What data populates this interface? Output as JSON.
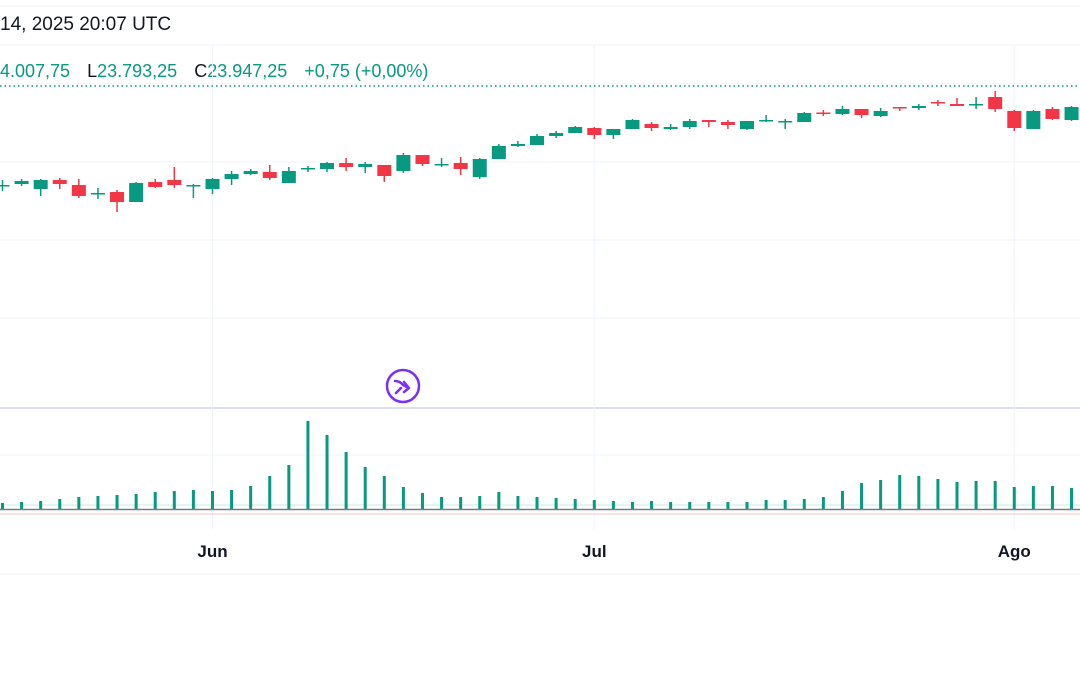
{
  "header": {
    "datetime": "14, 2025 20:07 UTC"
  },
  "legend": {
    "high_value": "4.007,75",
    "low_label": "L",
    "low_value": "23.793,25",
    "close_label": "C",
    "close_value": "23.947,25",
    "change": "+0,75 (+0,00%)"
  },
  "colors": {
    "up": "#089981",
    "down": "#F23645",
    "accent": "#7B2FF7",
    "text": "#131722"
  },
  "icons": {
    "go_to_realtime": "arrow-right-circle-icon"
  },
  "chart_data": {
    "type": "candlestick",
    "x_tick_labels": [
      "Jun",
      "Jul",
      "Ago"
    ],
    "x_tick_index": [
      11,
      31,
      53
    ],
    "current_price": 23947.25,
    "y_range": [
      19000,
      25000
    ],
    "grid": true,
    "ohlc": [
      [
        21397,
        21538,
        21256,
        21410
      ],
      [
        21436,
        21564,
        21385,
        21513
      ],
      [
        21308,
        21564,
        21128,
        21538
      ],
      [
        21538,
        21590,
        21308,
        21436
      ],
      [
        21410,
        21564,
        21077,
        21128
      ],
      [
        21179,
        21333,
        21051,
        21205
      ],
      [
        21231,
        21282,
        20718,
        20974
      ],
      [
        20974,
        21487,
        20974,
        21462
      ],
      [
        21487,
        21564,
        21333,
        21359
      ],
      [
        21538,
        21872,
        21333,
        21410
      ],
      [
        21385,
        21436,
        21077,
        21410
      ],
      [
        21308,
        21590,
        21179,
        21564
      ],
      [
        21564,
        21769,
        21410,
        21692
      ],
      [
        21692,
        21821,
        21667,
        21769
      ],
      [
        21744,
        21923,
        21538,
        21590
      ],
      [
        21462,
        21872,
        21462,
        21769
      ],
      [
        21833,
        21897,
        21744,
        21846
      ],
      [
        21821,
        22000,
        21744,
        21974
      ],
      [
        21974,
        22103,
        21769,
        21872
      ],
      [
        21872,
        22000,
        21718,
        21949
      ],
      [
        21923,
        21923,
        21487,
        21641
      ],
      [
        21769,
        22231,
        21718,
        22179
      ],
      [
        22179,
        22179,
        21897,
        21949
      ],
      [
        21936,
        22103,
        21872,
        21949
      ],
      [
        21974,
        22128,
        21667,
        21821
      ],
      [
        21615,
        22103,
        21564,
        22077
      ],
      [
        22077,
        22462,
        22077,
        22410
      ],
      [
        22410,
        22538,
        22385,
        22462
      ],
      [
        22436,
        22718,
        22436,
        22667
      ],
      [
        22667,
        22795,
        22615,
        22744
      ],
      [
        22744,
        22923,
        22744,
        22897
      ],
      [
        22872,
        22897,
        22590,
        22692
      ],
      [
        22692,
        22846,
        22590,
        22846
      ],
      [
        22846,
        23103,
        22846,
        23077
      ],
      [
        22974,
        23026,
        22795,
        22872
      ],
      [
        22846,
        22974,
        22821,
        22897
      ],
      [
        22897,
        23103,
        22846,
        23051
      ],
      [
        23077,
        23077,
        22897,
        23026
      ],
      [
        23026,
        23077,
        22846,
        22949
      ],
      [
        22846,
        23051,
        22821,
        23051
      ],
      [
        23064,
        23205,
        23026,
        23077
      ],
      [
        23038,
        23103,
        22846,
        23051
      ],
      [
        23026,
        23282,
        23026,
        23256
      ],
      [
        23269,
        23333,
        23179,
        23256
      ],
      [
        23231,
        23436,
        23205,
        23359
      ],
      [
        23359,
        23359,
        23128,
        23205
      ],
      [
        23179,
        23385,
        23154,
        23308
      ],
      [
        23410,
        23410,
        23308,
        23372
      ],
      [
        23385,
        23487,
        23333,
        23436
      ],
      [
        23538,
        23590,
        23436,
        23500
      ],
      [
        23487,
        23641,
        23436,
        23436
      ],
      [
        23474,
        23667,
        23359,
        23487
      ],
      [
        23667,
        23821,
        23282,
        23359
      ],
      [
        23308,
        23333,
        22795,
        22872
      ],
      [
        22846,
        23333,
        22846,
        23308
      ],
      [
        23359,
        23410,
        23077,
        23103
      ],
      [
        23077,
        23436,
        23051,
        23410
      ]
    ],
    "volume": [
      6,
      7,
      8,
      10,
      12,
      13,
      14,
      15,
      17,
      18,
      19,
      18,
      19,
      23,
      33,
      44,
      88,
      74,
      57,
      42,
      33,
      22,
      16,
      12,
      12,
      13,
      17,
      13,
      12,
      11,
      10,
      9,
      8,
      7,
      8,
      7,
      7,
      7,
      7,
      7,
      9,
      9,
      10,
      12,
      18,
      26,
      29,
      34,
      33,
      30,
      27,
      28,
      28,
      22,
      23,
      23,
      21
    ]
  }
}
